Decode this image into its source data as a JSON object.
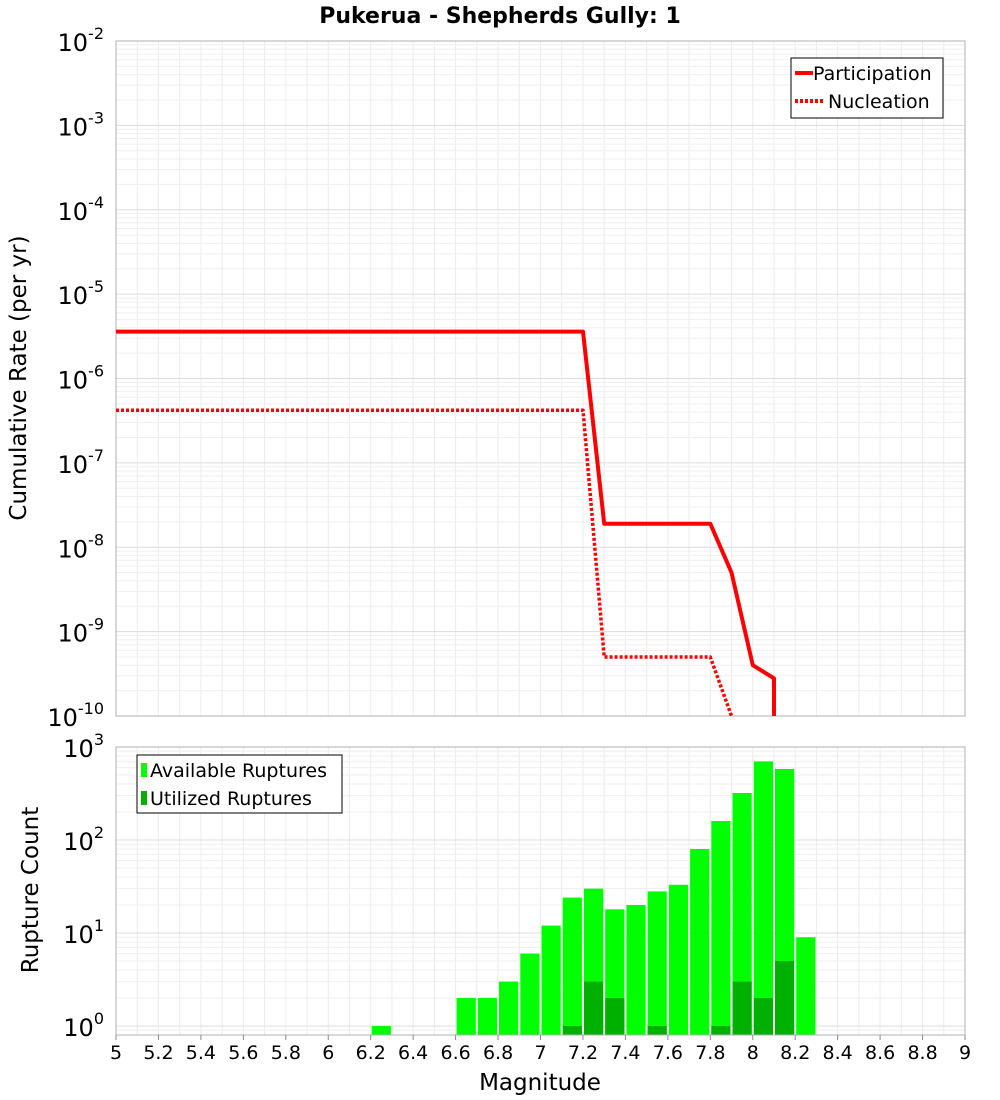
{
  "chart_data": [
    {
      "type": "line",
      "title": "Pukerua - Shepherds Gully: 1",
      "xlabel": "",
      "ylabel": "Cumulative Rate (per yr)",
      "xlim": [
        5,
        9
      ],
      "ylim": [
        1e-10,
        0.01
      ],
      "yscale": "log",
      "grid": true,
      "legend_position": "top-right",
      "yticks": [
        {
          "base": "10",
          "exp": "-2"
        },
        {
          "base": "10",
          "exp": "-3"
        },
        {
          "base": "10",
          "exp": "-4"
        },
        {
          "base": "10",
          "exp": "-5"
        },
        {
          "base": "10",
          "exp": "-6"
        },
        {
          "base": "10",
          "exp": "-7"
        },
        {
          "base": "10",
          "exp": "-8"
        },
        {
          "base": "10",
          "exp": "-9"
        },
        {
          "base": "10",
          "exp": "-10"
        }
      ],
      "series": [
        {
          "name": "Participation",
          "style": "solid",
          "color": "#ff0000",
          "x": [
            5.0,
            7.2,
            7.3,
            7.8,
            7.9,
            8.0,
            8.1,
            8.1
          ],
          "y": [
            3.6e-06,
            3.6e-06,
            1.9e-08,
            1.9e-08,
            5e-09,
            4e-10,
            2.8e-10,
            1e-10
          ]
        },
        {
          "name": "Nucleation",
          "style": "dotted",
          "color": "#ff0000",
          "x": [
            5.0,
            7.2,
            7.3,
            7.8,
            7.9
          ],
          "y": [
            4.2e-07,
            4.2e-07,
            5e-10,
            5e-10,
            1e-10
          ]
        }
      ]
    },
    {
      "type": "bar",
      "xlabel": "Magnitude",
      "ylabel": "Rupture Count",
      "xlim": [
        5,
        9
      ],
      "ylim": [
        0.8,
        1000
      ],
      "yscale": "log",
      "grid": true,
      "legend_position": "top-left",
      "xticks": [
        "5",
        "5.2",
        "5.4",
        "5.6",
        "5.8",
        "6",
        "6.2",
        "6.4",
        "6.6",
        "6.8",
        "7",
        "7.2",
        "7.4",
        "7.6",
        "7.8",
        "8",
        "8.2",
        "8.4",
        "8.6",
        "8.8",
        "9"
      ],
      "yticks": [
        {
          "base": "10",
          "exp": "3"
        },
        {
          "base": "10",
          "exp": "2"
        },
        {
          "base": "10",
          "exp": "1"
        },
        {
          "base": "10",
          "exp": "0"
        }
      ],
      "series": [
        {
          "name": "Available Ruptures",
          "color": "#00ff00",
          "x": [
            6.25,
            6.65,
            6.75,
            6.85,
            6.95,
            7.05,
            7.15,
            7.25,
            7.35,
            7.45,
            7.55,
            7.65,
            7.75,
            7.85,
            7.95,
            8.05,
            8.15,
            8.25
          ],
          "values": [
            1,
            2,
            2,
            3,
            6,
            12,
            24,
            30,
            18,
            20,
            28,
            33,
            80,
            160,
            320,
            700,
            580,
            9
          ]
        },
        {
          "name": "Utilized Ruptures",
          "color": "#00b000",
          "x": [
            7.15,
            7.25,
            7.35,
            7.55,
            7.85,
            7.95,
            8.05,
            8.15
          ],
          "values": [
            1,
            3,
            2,
            1,
            1,
            3,
            2,
            5
          ]
        }
      ]
    }
  ]
}
